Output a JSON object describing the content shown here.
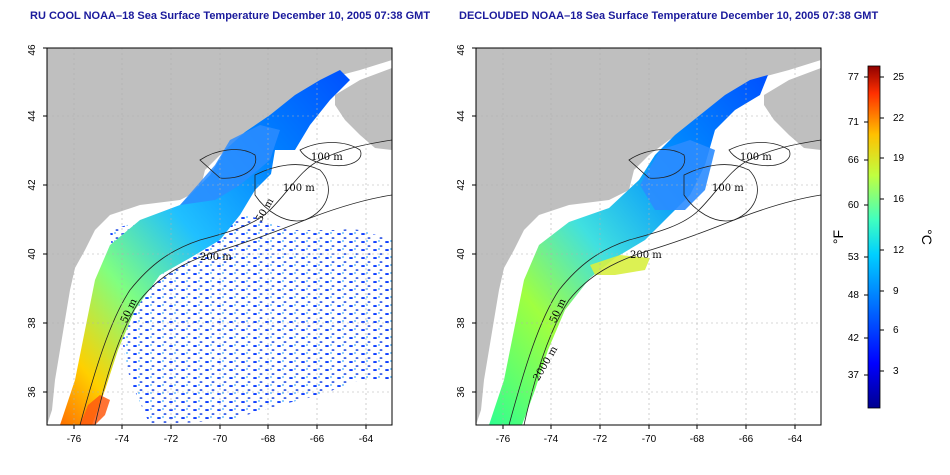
{
  "left_panel": {
    "title": "RU COOL NOAA–18 Sea Surface Temperature December 10, 2005 07:38 GMT",
    "contour_labels": [
      "100 m",
      "100 m",
      "50 m",
      "200 m",
      "50 m"
    ]
  },
  "right_panel": {
    "title": "DECLOUDED NOAA–18 Sea Surface Temperature December 10, 2005 07:38 GMT",
    "contour_labels": [
      "100 m",
      "100 m",
      "200 m",
      "50 m",
      "2000 m"
    ]
  },
  "axes": {
    "x_ticks": [
      "-76",
      "-74",
      "-72",
      "-70",
      "-68",
      "-66",
      "-64"
    ],
    "y_ticks": [
      "36",
      "38",
      "40",
      "42",
      "44",
      "46"
    ]
  },
  "colorbar": {
    "fahrenheit_label": "°F",
    "celsius_label": "°C",
    "fahrenheit_ticks": [
      "77",
      "71",
      "66",
      "60",
      "53",
      "48",
      "42",
      "37"
    ],
    "celsius_ticks": [
      "25",
      "22",
      "19",
      "16",
      "12",
      "9",
      "6",
      "3"
    ]
  },
  "colors": {
    "land": "#bfbfbf",
    "grid": "#b0b0b0",
    "title": "#1a1a9c",
    "colormap": [
      "#00008f",
      "#0000ff",
      "#0060ff",
      "#00bfff",
      "#40ffbf",
      "#bfff40",
      "#ffbf00",
      "#ff4000",
      "#8f0000"
    ]
  }
}
